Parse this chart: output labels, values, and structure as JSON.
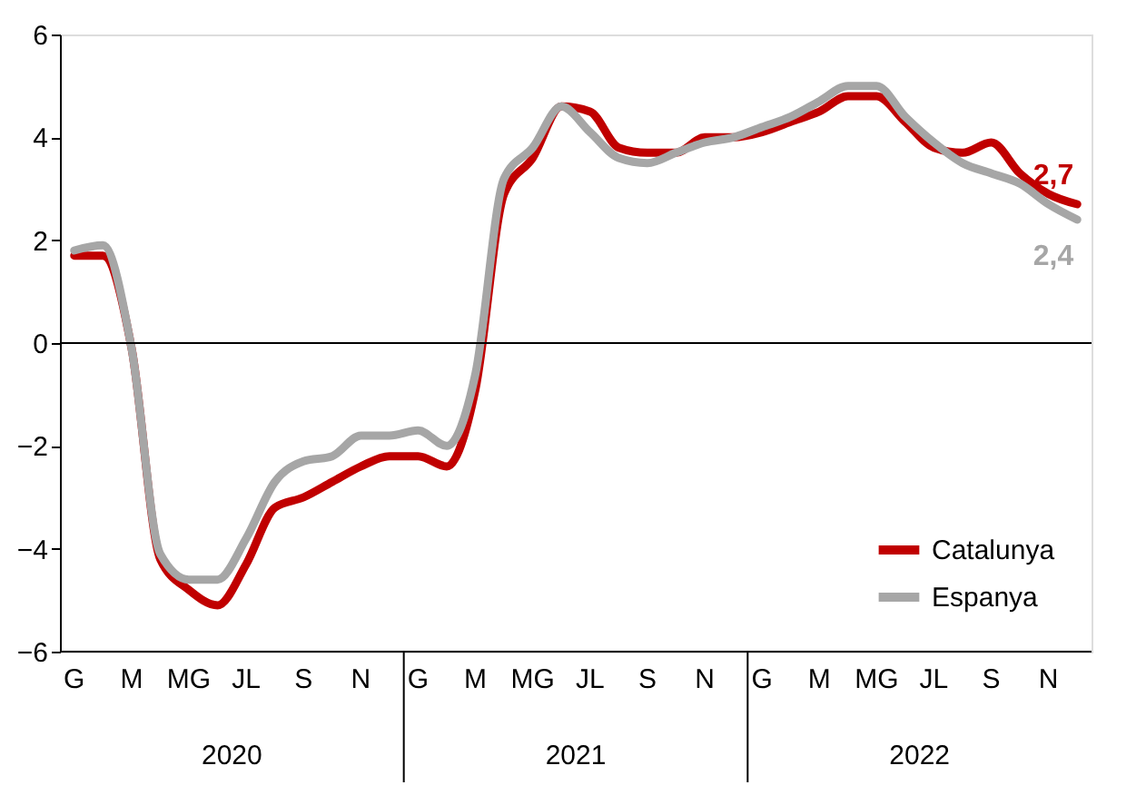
{
  "chart_data": {
    "type": "line",
    "categories": [
      "G",
      null,
      "M",
      null,
      "MG",
      null,
      "JL",
      null,
      "S",
      null,
      "N",
      null,
      "G",
      null,
      "M",
      null,
      "MG",
      null,
      "JL",
      null,
      "S",
      null,
      "N",
      null,
      "G",
      null,
      "M",
      null,
      "MG",
      null,
      "JL",
      null,
      "S",
      null,
      "N",
      null
    ],
    "series": [
      {
        "name": "Catalunya",
        "color": "#c00000",
        "values": [
          1.7,
          1.7,
          -0.1,
          -4.2,
          -4.8,
          -5.1,
          -4.3,
          -3.2,
          -3.0,
          -2.7,
          -2.4,
          -2.2,
          -2.2,
          -2.4,
          -0.9,
          2.9,
          3.6,
          4.6,
          4.5,
          3.8,
          3.7,
          3.7,
          4.0,
          4.0,
          4.1,
          4.3,
          4.5,
          4.8,
          4.8,
          4.3,
          3.8,
          3.7,
          3.9,
          3.3,
          2.9,
          2.7
        ],
        "value_labels": [
          null,
          null,
          null,
          null,
          null,
          null,
          null,
          null,
          null,
          null,
          null,
          null,
          null,
          null,
          null,
          null,
          null,
          null,
          null,
          null,
          null,
          null,
          null,
          null,
          null,
          null,
          null,
          null,
          null,
          null,
          null,
          null,
          null,
          null,
          null,
          "2,7"
        ]
      },
      {
        "name": "Espanya",
        "color": "#a6a6a6",
        "values": [
          1.8,
          1.9,
          -0.1,
          -4.1,
          -4.6,
          -4.6,
          -3.8,
          -2.7,
          -2.3,
          -2.2,
          -1.8,
          -1.8,
          -1.7,
          -2.0,
          -0.6,
          3.2,
          3.8,
          4.6,
          4.1,
          3.6,
          3.5,
          3.7,
          3.9,
          4.0,
          4.2,
          4.4,
          4.7,
          5.0,
          5.0,
          4.4,
          3.9,
          3.5,
          3.3,
          3.1,
          2.7,
          2.4
        ],
        "value_labels": [
          null,
          null,
          null,
          null,
          null,
          null,
          null,
          null,
          null,
          null,
          null,
          null,
          null,
          null,
          null,
          null,
          null,
          null,
          null,
          null,
          null,
          null,
          null,
          null,
          null,
          null,
          null,
          null,
          null,
          null,
          null,
          null,
          null,
          null,
          null,
          "2,4"
        ]
      }
    ],
    "annotations": [
      "2020",
      "2021",
      "2022"
    ],
    "ylim": [
      -6,
      6
    ],
    "yticks": [
      -6,
      -4,
      -2,
      0,
      2,
      4,
      6
    ],
    "ref_lines": [
      {
        "axis": "y",
        "value": 0,
        "label": null
      }
    ],
    "grid": false,
    "legend": "bottom right",
    "line_style": "solid",
    "marker": "none"
  }
}
